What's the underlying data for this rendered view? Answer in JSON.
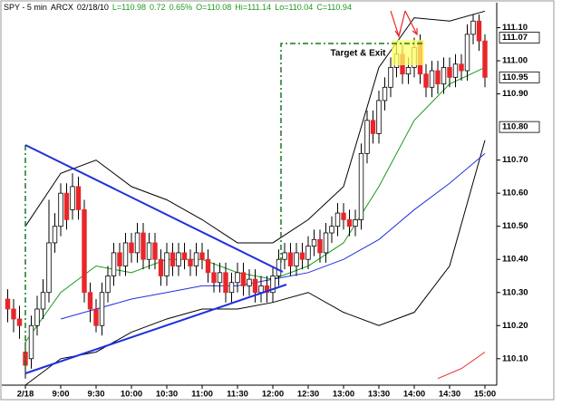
{
  "chart_data": {
    "type": "candlestick",
    "header": [
      {
        "text": "SPY - 5 min",
        "color": "#000000"
      },
      {
        "text": "ARCX",
        "color": "#000000"
      },
      {
        "text": "02/18/10",
        "color": "#000000"
      },
      {
        "text": "L=110.98",
        "color": "#1a9a1a"
      },
      {
        "text": "0.72",
        "color": "#1a9a1a"
      },
      {
        "text": "0.65%",
        "color": "#1a9a1a"
      },
      {
        "text": "O=110.08",
        "color": "#1a9a1a"
      },
      {
        "text": "Hi=111.14",
        "color": "#1a9a1a"
      },
      {
        "text": "Lo=110.04",
        "color": "#1a9a1a"
      },
      {
        "text": "C=110.94",
        "color": "#1a9a1a"
      }
    ],
    "annotation": "Target & Exit",
    "categories": [
      null,
      null,
      null,
      "2/18",
      null,
      null,
      null,
      null,
      null,
      "9:00",
      null,
      null,
      null,
      null,
      null,
      "9:30",
      null,
      null,
      null,
      null,
      null,
      "10:00",
      null,
      null,
      null,
      null,
      null,
      "10:30",
      null,
      null,
      null,
      null,
      null,
      "11:00",
      null,
      null,
      null,
      null,
      null,
      "11:30",
      null,
      null,
      null,
      null,
      null,
      "12:00",
      null,
      null,
      null,
      null,
      null,
      "12:30",
      null,
      null,
      null,
      null,
      null,
      "13:00",
      null,
      null,
      null,
      null,
      null,
      "13:30",
      null,
      null,
      null,
      null,
      null,
      "14:00",
      null,
      null,
      null,
      null,
      null,
      "14:30",
      null,
      null,
      null,
      null,
      null,
      "15:00"
    ],
    "open": [
      110.28,
      110.25,
      110.22,
      110.12,
      110.1,
      110.2,
      110.25,
      110.3,
      110.45,
      110.5,
      110.6,
      110.55,
      110.62,
      110.55,
      110.3,
      110.25,
      110.2,
      110.3,
      110.35,
      110.42,
      110.38,
      110.45,
      110.42,
      110.48,
      110.4,
      110.45,
      110.4,
      110.35,
      110.42,
      110.38,
      110.42,
      110.4,
      110.38,
      110.42,
      110.4,
      110.36,
      110.33,
      110.36,
      110.3,
      110.33,
      110.36,
      110.32,
      110.34,
      110.3,
      110.32,
      110.3,
      110.35,
      110.4,
      110.42,
      110.38,
      110.42,
      110.4,
      110.44,
      110.46,
      110.42,
      110.48,
      110.5,
      110.54,
      110.52,
      110.5,
      110.52,
      110.72,
      110.82,
      110.78,
      110.88,
      110.92,
      110.98,
      111.02,
      110.96,
      110.98,
      111.06,
      110.96,
      110.92,
      110.97,
      110.93,
      110.98,
      110.95,
      110.99,
      110.97,
      111.08,
      111.12,
      111.06
    ],
    "high": [
      110.31,
      110.28,
      110.26,
      110.15,
      110.23,
      110.29,
      110.34,
      110.58,
      110.54,
      110.63,
      110.63,
      110.66,
      110.65,
      110.58,
      110.33,
      110.28,
      110.33,
      110.38,
      110.45,
      110.45,
      110.48,
      110.48,
      110.51,
      110.51,
      110.48,
      110.48,
      110.43,
      110.45,
      110.45,
      110.45,
      110.45,
      110.43,
      110.45,
      110.45,
      110.43,
      110.39,
      110.39,
      110.39,
      110.36,
      110.39,
      110.39,
      110.37,
      110.37,
      110.35,
      110.35,
      110.38,
      110.43,
      110.45,
      110.45,
      110.45,
      110.45,
      110.47,
      110.49,
      110.49,
      110.51,
      110.53,
      110.57,
      110.57,
      110.55,
      110.55,
      110.75,
      110.85,
      110.85,
      110.91,
      110.95,
      111.01,
      111.05,
      111.05,
      111.01,
      111.07,
      111.08,
      110.99,
      111.0,
      111.0,
      111.01,
      111.01,
      111.02,
      111.02,
      111.11,
      111.14,
      111.14,
      111.08
    ],
    "low": [
      110.21,
      110.18,
      110.16,
      110.04,
      110.07,
      110.17,
      110.22,
      110.27,
      110.42,
      110.47,
      110.49,
      110.52,
      110.52,
      110.27,
      110.21,
      110.18,
      110.17,
      110.27,
      110.32,
      110.35,
      110.35,
      110.39,
      110.39,
      110.37,
      110.37,
      110.37,
      110.32,
      110.32,
      110.35,
      110.35,
      110.37,
      110.35,
      110.35,
      110.37,
      110.33,
      110.3,
      110.3,
      110.27,
      110.27,
      110.3,
      110.29,
      110.29,
      110.27,
      110.27,
      110.27,
      110.27,
      110.32,
      110.37,
      110.35,
      110.35,
      110.37,
      110.37,
      110.41,
      110.39,
      110.39,
      110.45,
      110.47,
      110.49,
      110.47,
      110.47,
      110.49,
      110.69,
      110.75,
      110.75,
      110.85,
      110.89,
      110.95,
      110.93,
      110.93,
      110.95,
      110.93,
      110.89,
      110.89,
      110.9,
      110.9,
      110.92,
      110.92,
      110.94,
      110.94,
      111.05,
      111.03,
      110.92
    ],
    "close": [
      110.25,
      110.22,
      110.2,
      110.08,
      110.2,
      110.25,
      110.3,
      110.45,
      110.5,
      110.6,
      110.52,
      110.62,
      110.55,
      110.3,
      110.25,
      110.2,
      110.3,
      110.35,
      110.42,
      110.38,
      110.45,
      110.42,
      110.48,
      110.4,
      110.45,
      110.4,
      110.35,
      110.42,
      110.38,
      110.42,
      110.4,
      110.38,
      110.42,
      110.4,
      110.36,
      110.33,
      110.36,
      110.3,
      110.33,
      110.36,
      110.32,
      110.34,
      110.3,
      110.32,
      110.3,
      110.35,
      110.4,
      110.42,
      110.38,
      110.42,
      110.4,
      110.44,
      110.46,
      110.42,
      110.48,
      110.5,
      110.54,
      110.52,
      110.5,
      110.52,
      110.72,
      110.82,
      110.78,
      110.88,
      110.92,
      110.98,
      111.02,
      110.96,
      110.98,
      111.04,
      110.96,
      110.92,
      110.97,
      110.93,
      110.98,
      110.95,
      110.99,
      110.97,
      111.08,
      111.12,
      111.06,
      110.95
    ],
    "up_color": "#ffffff",
    "down_color": "#e8262a",
    "lines": [
      {
        "color": "#000000",
        "x": [
          3,
          9,
          15,
          21,
          27,
          33,
          39,
          45,
          51,
          57,
          63,
          69,
          75,
          81
        ],
        "values": [
          110.5,
          110.66,
          110.7,
          110.62,
          110.58,
          110.52,
          110.45,
          110.45,
          110.52,
          110.62,
          110.98,
          111.13,
          111.12,
          111.15
        ]
      },
      {
        "color": "#000000",
        "x": [
          3,
          9,
          15,
          21,
          27,
          33,
          39,
          45,
          51,
          57,
          63,
          69,
          75,
          81
        ],
        "values": [
          110.02,
          110.1,
          110.12,
          110.18,
          110.22,
          110.25,
          110.25,
          110.27,
          110.3,
          110.24,
          110.2,
          110.24,
          110.38,
          110.76
        ]
      },
      {
        "color": "#1a9a1a",
        "x": [
          3,
          9,
          15,
          21,
          27,
          33,
          39,
          45,
          51,
          57,
          63,
          69,
          75,
          81
        ],
        "values": [
          110.15,
          110.3,
          110.38,
          110.36,
          110.4,
          110.4,
          110.36,
          110.34,
          110.38,
          110.45,
          110.62,
          110.82,
          110.93,
          110.98
        ]
      },
      {
        "color": "#2030e0",
        "x": [
          9,
          15,
          21,
          27,
          33,
          39,
          45,
          51,
          57,
          63,
          69,
          75,
          81
        ],
        "values": [
          110.22,
          110.25,
          110.28,
          110.3,
          110.32,
          110.32,
          110.34,
          110.36,
          110.4,
          110.46,
          110.55,
          110.63,
          110.72
        ]
      },
      {
        "color": "#e8262a",
        "x": [
          73,
          77,
          81
        ],
        "values": [
          110.04,
          110.07,
          110.12
        ]
      }
    ],
    "ylim": [
      110.02,
      111.17
    ],
    "yticks": [
      {
        "value": 110.1,
        "label": "110.10"
      },
      {
        "value": 110.2,
        "label": "110.20"
      },
      {
        "value": 110.3,
        "label": "110.30"
      },
      {
        "value": 110.4,
        "label": "110.40"
      },
      {
        "value": 110.5,
        "label": "110.50"
      },
      {
        "value": 110.6,
        "label": "110.60"
      },
      {
        "value": 110.7,
        "label": "110.70"
      },
      {
        "value": 110.9,
        "label": "110.90"
      },
      {
        "value": 111.0,
        "label": "111.00"
      },
      {
        "value": 111.1,
        "label": "111.10"
      }
    ],
    "price_labels": [
      {
        "value": 111.07,
        "label": "111.07",
        "color": "#000000"
      },
      {
        "value": 110.95,
        "label": "110.95",
        "color": "#e8262a"
      },
      {
        "value": 110.8,
        "label": "110.80",
        "color": "#000000"
      }
    ]
  }
}
